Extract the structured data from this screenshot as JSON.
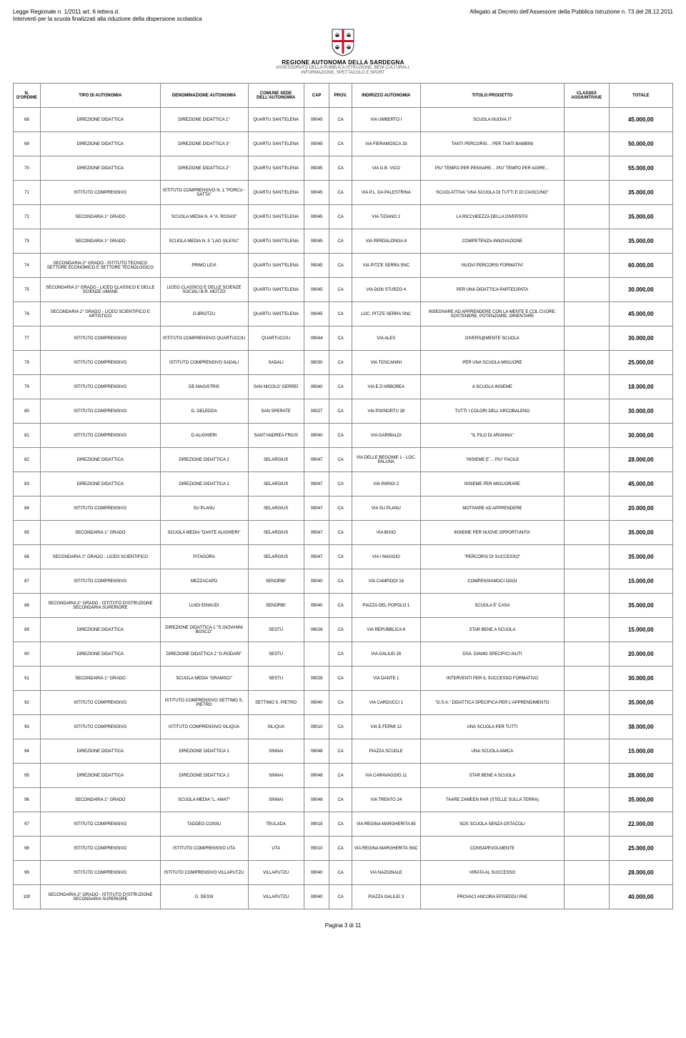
{
  "header": {
    "left_line1": "Legge Regionale n. 1/2011 art. 6 lettera d.",
    "left_line2": "Interventi per la scuola finalizzati alla riduzione della dispersione scolastica",
    "right_line": "Allegato al Decreto dell'Assessore della Pubblica Istruzione n. 73 del 28.12.2011",
    "region_name": "REGIONE AUTONOMA DELLA SARDEGNA",
    "assess_line1": "ASSESSORATO DELLA PUBBLICA ISTRUZIONE, BENI CULTURALI,",
    "assess_line2": "INFORMAZIONE, SPETTACOLO E SPORT"
  },
  "columns": [
    "N. D'ORDINE",
    "TIPO DI AUTONOMIA",
    "DENOMINAZIONE AUTONOMIA",
    "COMUNE SEDE DELL'AUTONOMIA",
    "CAP",
    "PROV.",
    "INDIRIZZO AUTONOMIA",
    "TITOLO PROGETTO",
    "CLASSE/I AGGIUNTIVA/E",
    "TOTALE"
  ],
  "rows": [
    {
      "n": "68",
      "tipo": "DIREZIONE DIDATTICA",
      "den": "DIREZIONE DIDATTICA 1°",
      "sede": "QUARTU SANT'ELENA",
      "cap": "09045",
      "prov": "CA",
      "ind": "VIA UMBERTO I",
      "tit": "SCUOLA NUOVA.IT",
      "cls": "",
      "tot": "45.000,00"
    },
    {
      "n": "69",
      "tipo": "DIREZIONE DIDATTICA",
      "den": "DIREZIONE DIDATTICA 3°",
      "sede": "QUARTU SANT'ELENA",
      "cap": "09045",
      "prov": "CA",
      "ind": "VIA FIERAMOSCA 33",
      "tit": "TANTI PERCORSI… PER TANTI BAMBINI",
      "cls": "",
      "tot": "50.000,00"
    },
    {
      "n": "70",
      "tipo": "DIREZIONE DIDATTICA",
      "den": "DIREZIONE DIDATTICA 2°",
      "sede": "QUARTU SANT'ELENA",
      "cap": "09045",
      "prov": "CA",
      "ind": "VIA G.B. VICO",
      "tit": "PIU' TEMPO PER PENSARE… PIU' TEMPO PER AGIRE…",
      "cls": "",
      "tot": "55.000,00"
    },
    {
      "n": "71",
      "tipo": "ISTITUTO COMPRENSIVO",
      "den": "ISTITUTO COMPRENSIVO N. 1 \"PORCU - SATTA\"",
      "sede": "QUARTU SANT'ELENA",
      "cap": "09045",
      "prov": "CA",
      "ind": "VIA P.L. DA PALESTRINA",
      "tit": "SCUOLATTIVA \"UNA SCUOLA DI TUTTI E DI CIASCUNO\"",
      "cls": "",
      "tot": "35.000,00"
    },
    {
      "n": "72",
      "tipo": "SECONDARIA 1° GRADO",
      "den": "SCUOLA MEDIA N. 4 \"A. ROSAS\"",
      "sede": "QUARTU SANT'ELENA",
      "cap": "09045",
      "prov": "CA",
      "ind": "VIA TIZIANO 2",
      "tit": "LA RICCHEEZZA DELLA DIVERSITA'",
      "cls": "",
      "tot": "35.000,00"
    },
    {
      "n": "73",
      "tipo": "SECONDARIA 1° GRADO",
      "den": "SCUOLA MEDIA N. 5 \"LAO SILESU\"",
      "sede": "QUARTU SANT'ELENA",
      "cap": "09045",
      "prov": "CA",
      "ind": "VIA PERDALONGA 8",
      "tit": "COMPETENZA-INNOVAZIONE",
      "cls": "",
      "tot": "35.000,00"
    },
    {
      "n": "74",
      "tipo": "SECONDARIA 2° GRADO - ISTITUTO TECNICO SETTORE ECONOMICO E SETTORE TECNOLOGICO",
      "den": "PRIMO LEVI",
      "sede": "QUARTU SANT'ELENA",
      "cap": "09045",
      "prov": "CA",
      "ind": "VIA PITZ'E SERRA SNC",
      "tit": "NUOVI PERCORSI FORMATIVI",
      "cls": "",
      "tot": "60.000,00"
    },
    {
      "n": "75",
      "tipo": "SECONDARIA 2° GRADO - LICEO CLASSICO E DELLE SCIENZE UMANE",
      "den": "LICEO CLASSICO E DELLE SCIENZE SOCIALI B.R. MOTZO",
      "sede": "QUARTU SANT'ELENA",
      "cap": "09045",
      "prov": "CA",
      "ind": "VIA DON STURZO 4",
      "tit": "PER UNA DIDATTICA PARTECIPATA",
      "cls": "",
      "tot": "30.000,00"
    },
    {
      "n": "76",
      "tipo": "SECONDARIA 2° GRADO - LICEO SCIENTIFICO E ARTISTICO",
      "den": "G.BROTZU",
      "sede": "QUARTU SANT'ELENA",
      "cap": "09045",
      "prov": "CA",
      "ind": "LOC. PITZ'E SERRA SNC",
      "tit": "INSEGNARE AD APPRENDERE CON LA MENTE E COL CUORE: SOSTENERE, POTENZIARE, ORIENTARE",
      "cls": "",
      "tot": "45.000,00"
    },
    {
      "n": "77",
      "tipo": "ISTITUTO COMPRENSIVO",
      "den": "ISTITUTO COMPRENSIVO QUARTUCCIU",
      "sede": "QUARTUCCIU",
      "cap": "09044",
      "prov": "CA",
      "ind": "VIA ALES",
      "tit": "DIVERS@MENTE SCUOLA",
      "cls": "",
      "tot": "30.000,00"
    },
    {
      "n": "78",
      "tipo": "ISTITUTO COMPRENSIVO",
      "den": "ISTITUTO COMPRENSIVO SADALI",
      "sede": "SADALI",
      "cap": "08030",
      "prov": "CA",
      "ind": "VIA TOSCANINI",
      "tit": "PER UNA SCUOLA MIGLIORE",
      "cls": "",
      "tot": "25.000,00"
    },
    {
      "n": "79",
      "tipo": "ISTITUTO COMPRENSIVO",
      "den": "DE MAGISTRIS",
      "sede": "SAN NICOLO' GERREI",
      "cap": "09040",
      "prov": "CA",
      "ind": "VIA E.D'ARBOREA",
      "tit": "A SCUOLA INSIEME",
      "cls": "",
      "tot": "18.000,00"
    },
    {
      "n": "80",
      "tipo": "ISTITUTO COMPRENSIVO",
      "den": "G. DELEDDA",
      "sede": "SAN SPERATE",
      "cap": "09027",
      "prov": "CA",
      "ind": "VIA PIXINORTU 28",
      "tit": "TUTTI I COLORI DELL'ARCOBALENO",
      "cls": "",
      "tot": "30.000,00"
    },
    {
      "n": "81",
      "tipo": "ISTITUTO COMPRENSIVO",
      "den": "D.ALIGHIERI",
      "sede": "SANT'ANDREA FRIUS",
      "cap": "09040",
      "prov": "CA",
      "ind": "VIA GARIBALDI",
      "tit": "\"IL FILO DI ARIANNA\"",
      "cls": "",
      "tot": "30.000,00"
    },
    {
      "n": "82",
      "tipo": "DIREZIONE DIDATTICA",
      "den": "DIREZIONE DIDATTICA 2",
      "sede": "SELARGIUS",
      "cap": "09047",
      "prov": "CA",
      "ind": "VIA DELLE BEGONIE 1 - LOC. PALUNA",
      "tit": "\"INSIEME E'… PIU' FACILE",
      "cls": "",
      "tot": "28.000,00"
    },
    {
      "n": "83",
      "tipo": "DIREZIONE DIDATTICA",
      "den": "DIREZIONE DIDATTICA 1",
      "sede": "SELARGIUS",
      "cap": "09047",
      "prov": "CA",
      "ind": "VIA PARIGI 2",
      "tit": "INSIEME PER MIGLIORARE",
      "cls": "",
      "tot": "45.000,00"
    },
    {
      "n": "84",
      "tipo": "ISTITUTO COMPRENSIVO",
      "den": "SU PLANU",
      "sede": "SELARGIUS",
      "cap": "09047",
      "prov": "CA",
      "ind": "VIA SU PLANU",
      "tit": "MOTIVARE AD APPRENDERE",
      "cls": "",
      "tot": "20.000,00"
    },
    {
      "n": "85",
      "tipo": "SECONDARIA 1° GRADO",
      "den": "SCUOLA MEDIA \"DANTE ALIGHIERI\"",
      "sede": "SELARGIUS",
      "cap": "09047",
      "prov": "CA",
      "ind": "VIA BIXIO",
      "tit": "INSIEME PER NUOVE OPPORTUNITA'",
      "cls": "",
      "tot": "35.000,00"
    },
    {
      "n": "86",
      "tipo": "SECONDARIA 2° GRADO - LICEO SCIENTIFICO",
      "den": "PITAGORA",
      "sede": "SELARGIUS",
      "cap": "09047",
      "prov": "CA",
      "ind": "VIA I MAGGIO",
      "tit": "\"PERCORSI DI SUCCESSO\"",
      "cls": "",
      "tot": "35.000,00"
    },
    {
      "n": "87",
      "tipo": "ISTITUTO COMPRENSIVO",
      "den": "MEZZACAPO",
      "sede": "SENORBI'",
      "cap": "09040",
      "prov": "CA",
      "ind": "VIA CAMPIOOI 16",
      "tit": "COMPENSIAMOCI OGGI",
      "cls": "",
      "tot": "15.000,00"
    },
    {
      "n": "88",
      "tipo": "SECONDARIA 2° GRADO - ISTITUTO D'ISTRUZIONE SECONDARIA SUPERIORE",
      "den": "LUIGI EINAUDI",
      "sede": "SENORBI'",
      "cap": "09040",
      "prov": "CA",
      "ind": "PIAZZA DEL POPOLO 1",
      "tit": "SCUOLA E' CASA",
      "cls": "",
      "tot": "35.000,00"
    },
    {
      "n": "89",
      "tipo": "DIREZIONE DIDATTICA",
      "den": "DIREZIONE DIDATTICA 1 \"S.GIOVANNI BOSCO\"",
      "sede": "SESTU",
      "cap": "09028",
      "prov": "CA",
      "ind": "VIA REPUBBLICA 6",
      "tit": "STAR BENE A SCUOLA",
      "cls": "",
      "tot": "15.000,00"
    },
    {
      "n": "90",
      "tipo": "DIREZIONE DIDATTICA",
      "den": "DIREZIONE DIDATTICA 2 \"G.RODARI\"",
      "sede": "SESTU",
      "cap": "",
      "prov": "CA",
      "ind": "VIA GALILEI 26",
      "tit": "DSA: DIAMO SPECIFICI AIUTI",
      "cls": "",
      "tot": "20.000,00"
    },
    {
      "n": "91",
      "tipo": "SECONDARIA 1° GRADO",
      "den": "SCUOLA MEDIA \"GRAMSCI\"",
      "sede": "SESTU",
      "cap": "09028",
      "prov": "CA",
      "ind": "VIA DANTE 1",
      "tit": "INTERVENTI PER IL SUCCESSO FORMATIVO",
      "cls": "",
      "tot": "30.000,00"
    },
    {
      "n": "92",
      "tipo": "ISTITUTO COMPRENSIVO",
      "den": "ISTITUTO COMPRENSIVO SETTIMO S. PIETRO",
      "sede": "SETTIMO S. PIETRO",
      "cap": "09040",
      "prov": "CA",
      "ind": "VIA CARDUCCI 1",
      "tit": "\"D.S.A.\" DIDATTICA SPECIFICA PER L'APPRENDIMENTO",
      "cls": "",
      "tot": "35.000,00"
    },
    {
      "n": "93",
      "tipo": "ISTITUTO COMPRENSIVO",
      "den": "ISTITUTO COMPRENSIVO SILIQUA",
      "sede": "SILIQUA",
      "cap": "09010",
      "prov": "CA",
      "ind": "VIA E.FERMI 12",
      "tit": "UNA SCUOLA PER TUTTI",
      "cls": "",
      "tot": "38.000,00"
    },
    {
      "n": "94",
      "tipo": "DIREZIONE DIDATTICA",
      "den": "DIREZIONE DIDATTICA 1",
      "sede": "SINNAI",
      "cap": "09048",
      "prov": "CA",
      "ind": "PIAZZA SCUOLE",
      "tit": "UNA SCUOLA AMICA",
      "cls": "",
      "tot": "15.000,00"
    },
    {
      "n": "95",
      "tipo": "DIREZIONE DIDATTICA",
      "den": "DIREZIONE DIDATTICA 2",
      "sede": "SINNAI",
      "cap": "09048",
      "prov": "CA",
      "ind": "VIA CARAVAGGIO 11",
      "tit": "STAR BENE A SCUOLA",
      "cls": "",
      "tot": "28.000,00"
    },
    {
      "n": "96",
      "tipo": "SECONDARIA 1° GRADO",
      "den": "SCUOLA MEDIA \"L. AMAT\"",
      "sede": "SINNAI",
      "cap": "09048",
      "prov": "CA",
      "ind": "VIA TRENTO 24",
      "tit": "TAARE ZAMEEN PAR (STELLE SULLA TERRA)",
      "cls": "",
      "tot": "35.000,00"
    },
    {
      "n": "97",
      "tipo": "ISTITUTO COMPRENSIVO",
      "den": "TADDEO COSSU",
      "sede": "TEULADA",
      "cap": "09019",
      "prov": "CA",
      "ind": "VIA REGINA MARGHERITA 85",
      "tit": "SOS SCUOLA SENZA OSTACOLI",
      "cls": "",
      "tot": "22.000,00"
    },
    {
      "n": "98",
      "tipo": "ISTITUTO COMPRENSIVO",
      "den": "ISTITUTO COMPRENSIVO UTA",
      "sede": "UTA",
      "cap": "09010",
      "prov": "CA",
      "ind": "VIA REGINA MARGHERITA SNC",
      "tit": "CONSAPEVOLMENTE",
      "cls": "",
      "tot": "25.000,00"
    },
    {
      "n": "99",
      "tipo": "ISTITUTO COMPRENSIVO",
      "den": "ISTITUTO COMPRENSIVO VILLAPUTZU",
      "sede": "VILLAPUTZU",
      "cap": "09040",
      "prov": "CA",
      "ind": "VIA NAZIONALE",
      "tit": "VIRATA AL SUCCESSO",
      "cls": "",
      "tot": "28.000,00"
    },
    {
      "n": "100",
      "tipo": "SECONDARIA 2° GRADO - ISTITUTO D'ISTRUZIONE SECONDARIA SUPERIORE",
      "den": "G. DESSI",
      "sede": "VILLAPUTZU",
      "cap": "09040",
      "prov": "CA",
      "ind": "PIAZZA GALILEI 3",
      "tit": "PROVACI ANCORA EFISEDDU PAE",
      "cls": "",
      "tot": "40.000,00"
    }
  ],
  "footer": "Pagina 3 di 11",
  "crest_colors": {
    "shield_bg": "#ffffff",
    "cross": "#c8102e",
    "head": "#333333",
    "bandana": "#ffffff"
  }
}
